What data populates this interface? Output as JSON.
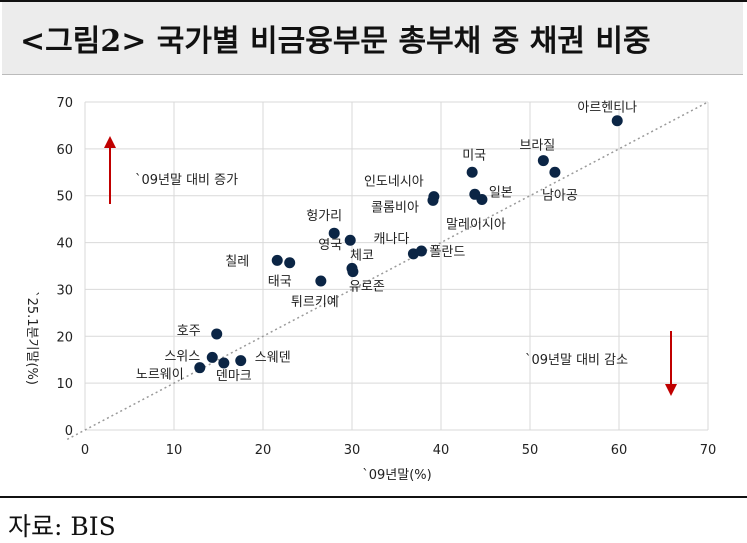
{
  "title": "<그림2> 국가별 비금융부문 총부채 중 채권 비중",
  "source": "자료: BIS",
  "chart_data": {
    "type": "scatter",
    "title": "<그림2> 국가별 비금융부문 총부채 중 채권 비중",
    "xlabel": "`09년말(%)",
    "ylabel": "`25.1분기말(%)",
    "xlim": [
      0,
      70
    ],
    "ylim": [
      0,
      70
    ],
    "xticks": [
      0,
      10,
      20,
      30,
      40,
      50,
      60,
      70
    ],
    "yticks": [
      0,
      10,
      20,
      30,
      40,
      50,
      60,
      70
    ],
    "grid": true,
    "reference_line": "y = x",
    "point_color": "#0b2545",
    "points": [
      {
        "label": "아르헨티나",
        "x": 59.8,
        "y": 66.0
      },
      {
        "label": "브라질",
        "x": 51.5,
        "y": 57.5
      },
      {
        "label": "남아공",
        "x": 52.8,
        "y": 55.0
      },
      {
        "label": "미국",
        "x": 43.5,
        "y": 55.0
      },
      {
        "label": "인도네시아",
        "x": 39.2,
        "y": 49.8
      },
      {
        "label": "콜롬비아",
        "x": 39.1,
        "y": 49.0
      },
      {
        "label": "일본",
        "x": 43.8,
        "y": 50.3
      },
      {
        "label": "말레이시아",
        "x": 44.6,
        "y": 49.2
      },
      {
        "label": "헝가리",
        "x": 28.0,
        "y": 42.0
      },
      {
        "label": "영국",
        "x": 29.8,
        "y": 40.5
      },
      {
        "label": "캐나다",
        "x": 36.9,
        "y": 37.6
      },
      {
        "label": "폴란드",
        "x": 37.8,
        "y": 38.2
      },
      {
        "label": "체코",
        "x": 30.0,
        "y": 34.5
      },
      {
        "label": "유로존",
        "x": 30.1,
        "y": 33.8
      },
      {
        "label": "칠레",
        "x": 21.6,
        "y": 36.2
      },
      {
        "label": "태국",
        "x": 23.0,
        "y": 35.7
      },
      {
        "label": "튀르키예",
        "x": 26.5,
        "y": 31.8
      },
      {
        "label": "호주",
        "x": 14.8,
        "y": 20.5
      },
      {
        "label": "스위스",
        "x": 14.3,
        "y": 15.5
      },
      {
        "label": "스웨덴",
        "x": 17.5,
        "y": 14.8
      },
      {
        "label": "덴마크",
        "x": 15.6,
        "y": 14.3
      },
      {
        "label": "노르웨이",
        "x": 12.9,
        "y": 13.3
      }
    ],
    "annotations": [
      {
        "text": "`09년말 대비 증가",
        "arrow": "up",
        "color": "#c00000"
      },
      {
        "text": "`09년말 대비 감소",
        "arrow": "down",
        "color": "#c00000"
      }
    ]
  }
}
